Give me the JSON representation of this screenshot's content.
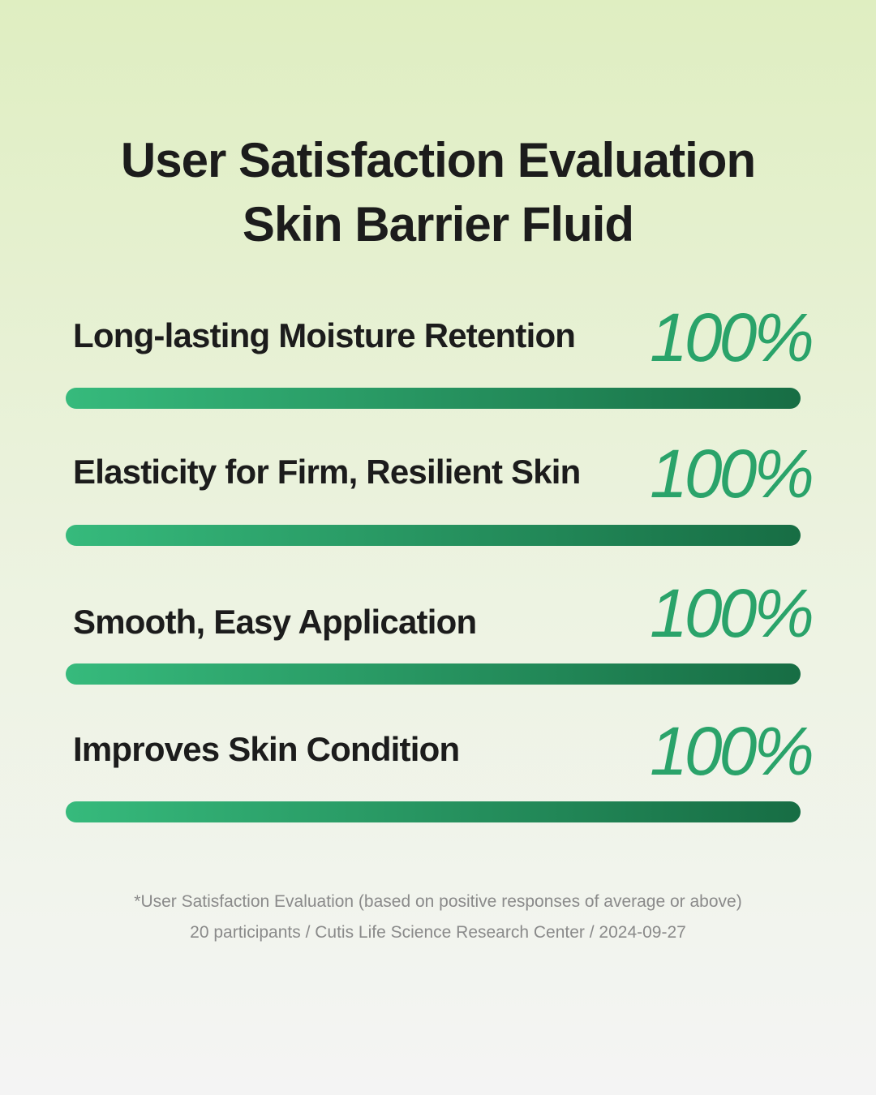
{
  "chart_data": {
    "type": "bar",
    "orientation": "horizontal",
    "title": "User Satisfaction Evaluation",
    "subtitle": "Skin Barrier Fluid",
    "categories": [
      "Long-lasting Moisture Retention",
      "Elasticity for Firm, Resilient Skin",
      "Smooth, Easy Application",
      "Improves Skin Condition"
    ],
    "values": [
      100,
      100,
      100,
      100
    ],
    "value_labels": [
      "100%",
      "100%",
      "100%",
      "100%"
    ],
    "color": [
      "#36ba7c",
      "#176d44"
    ],
    "xlim": [
      0,
      100
    ],
    "footnotes": [
      "*User Satisfaction Evaluation (based on positive responses of average or above)",
      "20 participants / Cutis Life Science Research Center / 2024-09-27"
    ]
  }
}
